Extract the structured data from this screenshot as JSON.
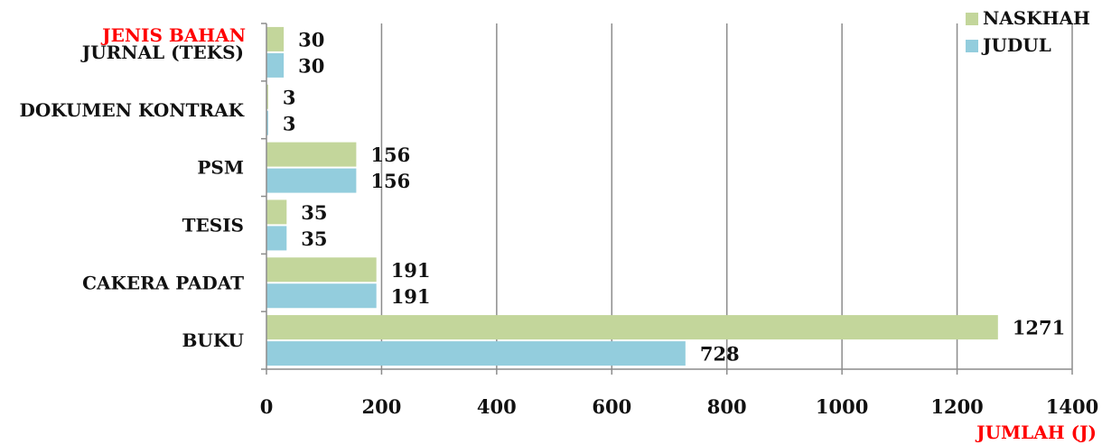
{
  "chart_data": {
    "type": "bar",
    "orientation": "horizontal",
    "categories": [
      "JURNAL (TEKS)",
      "DOKUMEN KONTRAK",
      "PSM",
      "TESIS",
      "CAKERA PADAT",
      "BUKU"
    ],
    "series": [
      {
        "name": "NASKHAH",
        "color": "#c3d69b",
        "values": [
          30,
          3,
          156,
          35,
          191,
          1271
        ]
      },
      {
        "name": "JUDUL",
        "color": "#93cddd",
        "values": [
          30,
          3,
          156,
          35,
          191,
          728
        ]
      }
    ],
    "xlim": [
      0,
      1400
    ],
    "xticks": [
      0,
      200,
      400,
      600,
      800,
      1000,
      1200,
      1400
    ],
    "ylabel": "JENIS BAHAN",
    "xlabel": "JUMLAH (J)",
    "axis_title_color": "#ff0000",
    "grid": true,
    "legend_position": "top-right"
  }
}
